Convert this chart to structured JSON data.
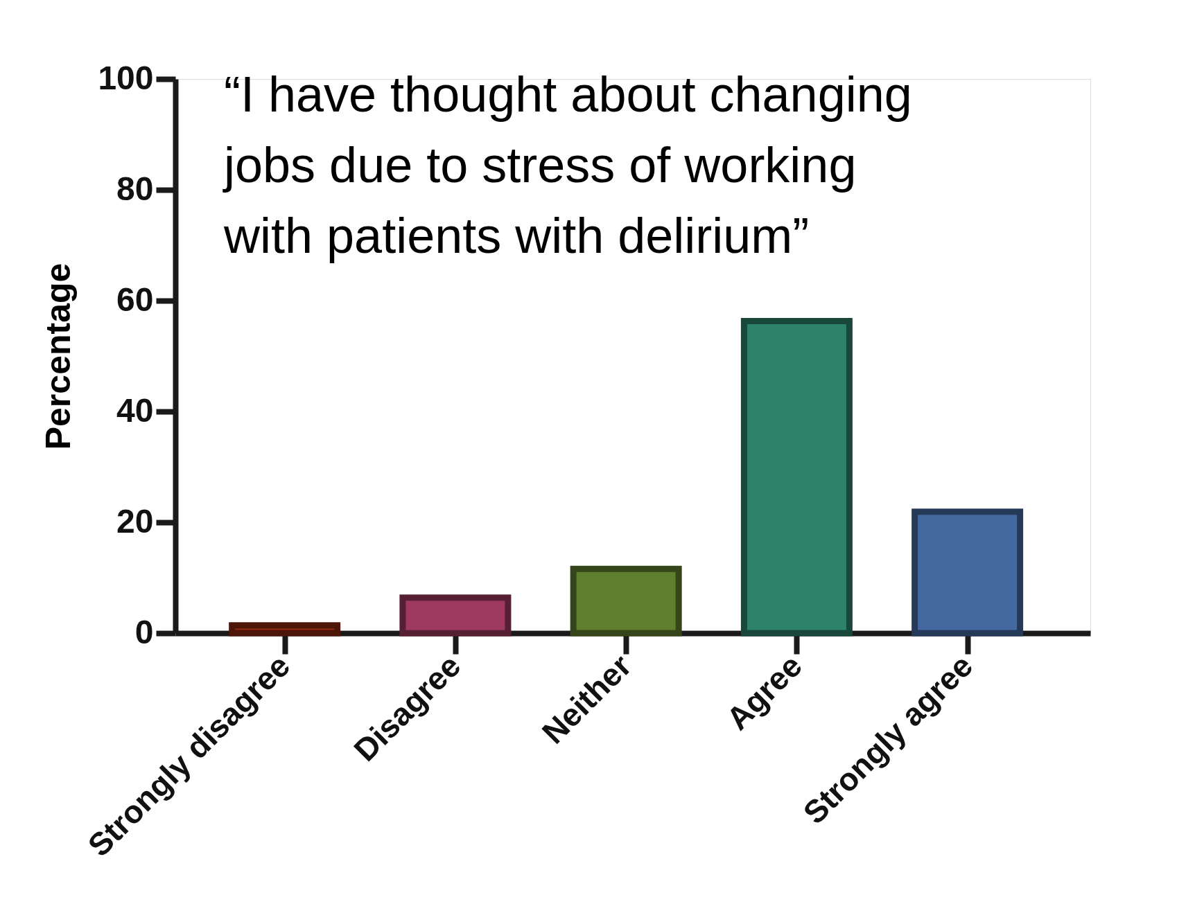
{
  "chart_data": {
    "type": "bar",
    "title": "“I have thought about changing jobs due to stress of working with patients with delirium”",
    "ylabel": "Percentage",
    "categories": [
      "Strongly disagree",
      "Disagree",
      "Neither",
      "Agree",
      "Strongly agree"
    ],
    "values": [
      1.4,
      6.4,
      11.6,
      56.3,
      21.9
    ],
    "colors": [
      "#8b2a10",
      "#9e3a5e",
      "#5f7f2e",
      "#2e826a",
      "#4468a0"
    ],
    "ylim": [
      0,
      100
    ],
    "yticks": [
      0,
      20,
      40,
      60,
      80,
      100
    ],
    "grid": false
  }
}
